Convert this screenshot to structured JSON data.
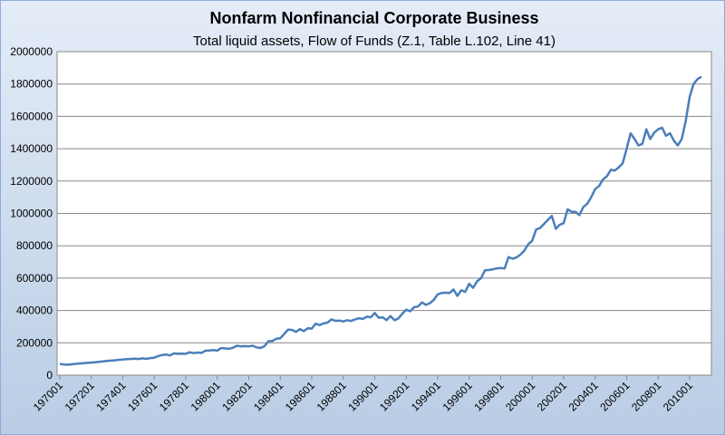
{
  "chart_data": {
    "type": "line",
    "title": "Nonfarm Nonfinancial Corporate Business",
    "subtitle": "Total liquid assets, Flow of Funds (Z.1, Table L.102, Line 41)",
    "categories": [
      "197001",
      null,
      null,
      null,
      null,
      null,
      null,
      null,
      "197201",
      null,
      null,
      null,
      null,
      null,
      null,
      null,
      "197401",
      null,
      null,
      null,
      null,
      null,
      null,
      null,
      "197601",
      null,
      null,
      null,
      null,
      null,
      null,
      null,
      "197801",
      null,
      null,
      null,
      null,
      null,
      null,
      null,
      "198001",
      null,
      null,
      null,
      null,
      null,
      null,
      null,
      "198201",
      null,
      null,
      null,
      null,
      null,
      null,
      null,
      "198401",
      null,
      null,
      null,
      null,
      null,
      null,
      null,
      "198601",
      null,
      null,
      null,
      null,
      null,
      null,
      null,
      "198801",
      null,
      null,
      null,
      null,
      null,
      null,
      null,
      "199001",
      null,
      null,
      null,
      null,
      null,
      null,
      null,
      "199201",
      null,
      null,
      null,
      null,
      null,
      null,
      null,
      "199401",
      null,
      null,
      null,
      null,
      null,
      null,
      null,
      "199601",
      null,
      null,
      null,
      null,
      null,
      null,
      null,
      "199801",
      null,
      null,
      null,
      null,
      null,
      null,
      null,
      "200001",
      null,
      null,
      null,
      null,
      null,
      null,
      null,
      "200201",
      null,
      null,
      null,
      null,
      null,
      null,
      null,
      "200401",
      null,
      null,
      null,
      null,
      null,
      null,
      null,
      "200601",
      null,
      null,
      null,
      null,
      null,
      null,
      null,
      "200801",
      null,
      null,
      null,
      null,
      null,
      null,
      null,
      "201001",
      null,
      null,
      null
    ],
    "values": [
      70000,
      66000,
      65000,
      67000,
      70000,
      72000,
      74000,
      76000,
      78000,
      80000,
      83000,
      85000,
      88000,
      90000,
      92000,
      95000,
      97000,
      99000,
      100000,
      102000,
      100000,
      104000,
      101000,
      106000,
      108000,
      118000,
      125000,
      128000,
      122000,
      135000,
      132000,
      133000,
      132000,
      142000,
      136000,
      140000,
      138000,
      152000,
      153000,
      155000,
      152000,
      168000,
      165000,
      163000,
      170000,
      182000,
      178000,
      180000,
      178000,
      182000,
      172000,
      168000,
      180000,
      210000,
      212000,
      225000,
      228000,
      255000,
      282000,
      280000,
      268000,
      285000,
      272000,
      290000,
      288000,
      318000,
      310000,
      320000,
      325000,
      345000,
      336000,
      338000,
      332000,
      340000,
      335000,
      345000,
      352000,
      348000,
      362000,
      358000,
      385000,
      355000,
      358000,
      340000,
      365000,
      340000,
      350000,
      380000,
      405000,
      395000,
      420000,
      425000,
      450000,
      435000,
      445000,
      465000,
      500000,
      508000,
      510000,
      508000,
      530000,
      490000,
      525000,
      515000,
      565000,
      540000,
      580000,
      600000,
      648000,
      650000,
      655000,
      660000,
      662000,
      660000,
      730000,
      720000,
      728000,
      745000,
      770000,
      810000,
      830000,
      900000,
      910000,
      935000,
      960000,
      985000,
      905000,
      930000,
      940000,
      1025000,
      1010000,
      1010000,
      990000,
      1040000,
      1060000,
      1100000,
      1150000,
      1170000,
      1210000,
      1230000,
      1270000,
      1265000,
      1285000,
      1310000,
      1400000,
      1495000,
      1460000,
      1420000,
      1430000,
      1520000,
      1460000,
      1500000,
      1520000,
      1530000,
      1480000,
      1495000,
      1450000,
      1420000,
      1460000,
      1570000,
      1720000,
      1800000,
      1830000,
      1845000
    ],
    "color": "#4a7ebb",
    "ylim": [
      0,
      2000000
    ],
    "yticks": [
      0,
      200000,
      400000,
      600000,
      800000,
      1000000,
      1200000,
      1400000,
      1600000,
      1800000,
      2000000
    ],
    "grid": true
  }
}
